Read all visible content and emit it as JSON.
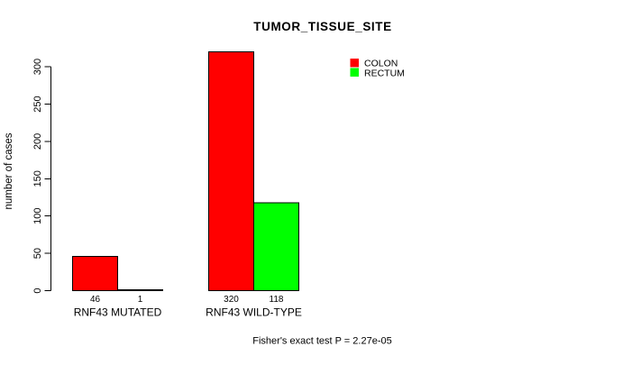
{
  "chart_data": {
    "type": "bar",
    "title": "TUMOR_TISSUE_SITE",
    "xlabel": "",
    "ylabel": "number of cases",
    "categories": [
      "RNF43 MUTATED",
      "RNF43 WILD-TYPE"
    ],
    "series": [
      {
        "name": "COLON",
        "color": "#ff0000",
        "values": [
          46,
          320
        ]
      },
      {
        "name": "RECTUM",
        "color": "#00ff00",
        "values": [
          1,
          118
        ]
      }
    ],
    "yticks": [
      0,
      50,
      100,
      150,
      200,
      250,
      300
    ],
    "ylim": [
      0,
      320
    ],
    "grid": false,
    "legend_position": "top-right",
    "bar_value_labels_shown": true,
    "annotation": "Fisher's exact test P = 2.27e-05"
  }
}
